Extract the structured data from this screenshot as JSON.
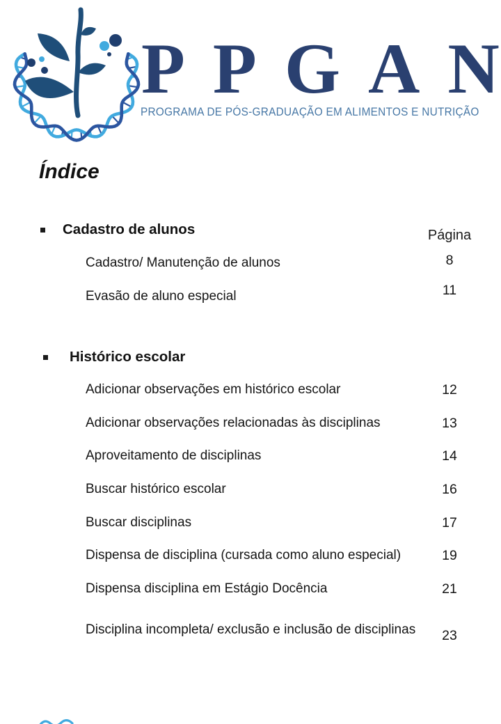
{
  "logo": {
    "acronym": "PPGAN",
    "subtitle": "PROGRAMA DE PÓS-GRADUAÇÃO EM ALIMENTOS E NUTRIÇÃO",
    "colors": {
      "acronym": "#2a4070",
      "subtitle": "#4878a6",
      "plant": "#1f4e79",
      "strand_light": "#41aadf",
      "strand_dark": "#2b55a0",
      "dot_light": "#41aadf",
      "dot_dark": "#1f3e6e"
    }
  },
  "toc": {
    "title": "Índice",
    "page_column_label": "Página",
    "sections": [
      {
        "label": "Cadastro de alunos",
        "items": [
          {
            "label": "Cadastro/ Manutenção de alunos",
            "page": "8"
          },
          {
            "label": "Evasão de aluno especial",
            "page": "11"
          }
        ]
      },
      {
        "label": "Histórico escolar",
        "items": [
          {
            "label": "Adicionar observações em histórico escolar",
            "page": "12"
          },
          {
            "label": "Adicionar observações relacionadas às disciplinas",
            "page": "13"
          },
          {
            "label": "Aproveitamento de disciplinas",
            "page": "14"
          },
          {
            "label": "Buscar histórico escolar",
            "page": "16"
          },
          {
            "label": "Buscar disciplinas",
            "page": "17"
          },
          {
            "label": "Dispensa de disciplina (cursada como aluno especial)",
            "page": "19"
          },
          {
            "label": "Dispensa disciplina em Estágio Docência",
            "page": "21"
          },
          {
            "label": "Disciplina incompleta/ exclusão e inclusão de disciplinas",
            "page": "23"
          }
        ]
      }
    ]
  }
}
